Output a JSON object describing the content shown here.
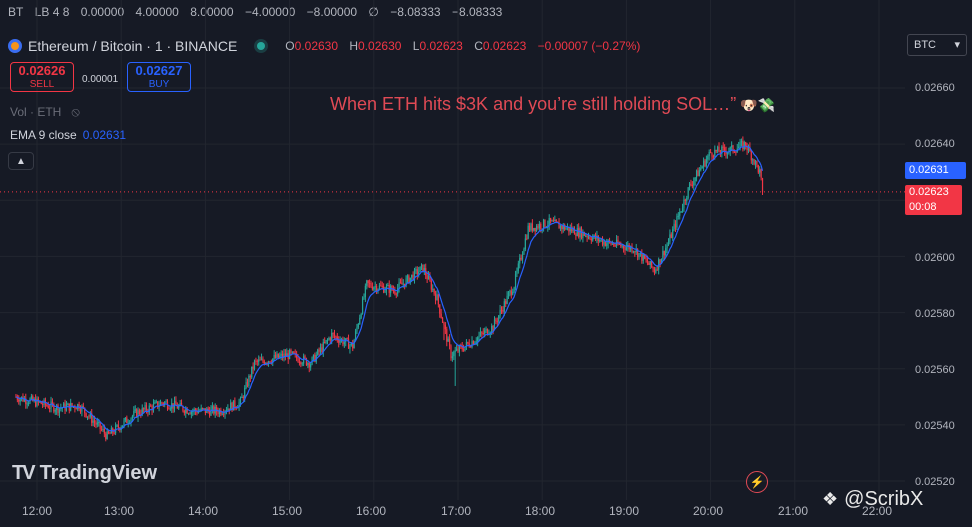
{
  "topbar": [
    "BT",
    "LB 4 8",
    "0.00000",
    "4.00000",
    "8.00000",
    "−4.00000",
    "−8.00000",
    "∅",
    "−8.08333",
    "−8.08333"
  ],
  "symbol": {
    "name": "Ethereum / Bitcoin · 1 · BINANCE",
    "o_label": "O",
    "o": "0.02630",
    "h_label": "H",
    "h": "0.02630",
    "l_label": "L",
    "l": "0.02623",
    "c_label": "C",
    "c": "0.02623",
    "change": "−0.00007 (−0.27%)"
  },
  "trade": {
    "sell_price": "0.02626",
    "sell_label": "SELL",
    "spread": "0.00001",
    "buy_price": "0.02627",
    "buy_label": "BUY"
  },
  "indicators": {
    "vol_label": "Vol · ETH",
    "ema_label": "EMA 9 close",
    "ema_value": "0.02631"
  },
  "caption": "When ETH hits $3K and you’re still holding SOL…”",
  "caption_emoji": "🐶💸",
  "currency": "BTC",
  "price_axis": {
    "ticks": [
      "0.02660",
      "0.02640",
      "0.02620",
      "0.02600",
      "0.02580",
      "0.02560",
      "0.02540",
      "0.02520"
    ],
    "ema_tag": "0.02631",
    "last_price": "0.02623",
    "countdown": "00:08"
  },
  "time_axis": [
    "12:00",
    "13:00",
    "14:00",
    "15:00",
    "16:00",
    "17:00",
    "18:00",
    "19:00",
    "20:00",
    "21:00",
    "22:00"
  ],
  "branding": {
    "logo": "TradingView",
    "watermark": "@ScribX"
  },
  "colors": {
    "up": "#26a69a",
    "down": "#f23645",
    "ema": "#2962ff",
    "bg": "#161a25"
  },
  "chart_data": {
    "type": "candlestick",
    "title": "Ethereum / Bitcoin · 1 · BINANCE",
    "ylim": [
      0.0252,
      0.0266
    ],
    "x_range": [
      "11:40",
      "22:00"
    ],
    "close_path": [
      [
        "11:45",
        0.0255
      ],
      [
        "12:15",
        0.02546
      ],
      [
        "12:30",
        0.02547
      ],
      [
        "12:50",
        0.02536
      ],
      [
        "13:10",
        0.02544
      ],
      [
        "13:30",
        0.02548
      ],
      [
        "13:50",
        0.02545
      ],
      [
        "14:10",
        0.02545
      ],
      [
        "14:25",
        0.02548
      ],
      [
        "14:35",
        0.02562
      ],
      [
        "15:00",
        0.02565
      ],
      [
        "15:15",
        0.02562
      ],
      [
        "15:30",
        0.02572
      ],
      [
        "15:45",
        0.02568
      ],
      [
        "15:55",
        0.0259
      ],
      [
        "16:15",
        0.02588
      ],
      [
        "16:35",
        0.02596
      ],
      [
        "16:45",
        0.02585
      ],
      [
        "16:55",
        0.02565
      ],
      [
        "17:05",
        0.02568
      ],
      [
        "17:25",
        0.02575
      ],
      [
        "17:40",
        0.0259
      ],
      [
        "17:50",
        0.0261
      ],
      [
        "18:05",
        0.02612
      ],
      [
        "18:30",
        0.02608
      ],
      [
        "18:45",
        0.02605
      ],
      [
        "19:05",
        0.02603
      ],
      [
        "19:20",
        0.02595
      ],
      [
        "19:30",
        0.02605
      ],
      [
        "19:45",
        0.02625
      ],
      [
        "20:00",
        0.02637
      ],
      [
        "20:15",
        0.02638
      ],
      [
        "20:25",
        0.0264
      ],
      [
        "20:35",
        0.0263
      ],
      [
        "20:37",
        0.02623
      ]
    ],
    "ema9_last": 0.02631,
    "last_close": 0.02623
  }
}
